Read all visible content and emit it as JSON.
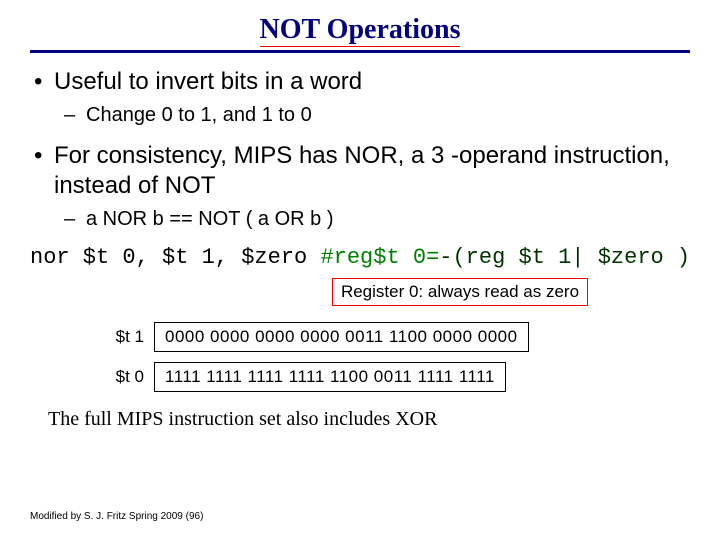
{
  "title": "NOT Operations",
  "bullets": {
    "b1": "Useful to invert bits in a word",
    "b1a": "Change 0 to 1, and 1 to 0",
    "b2": "For consistency, MIPS has NOR, a 3 -operand instruction, instead of NOT",
    "b2a": "a NOR b == NOT ( a OR b )"
  },
  "code": {
    "instr": "nor $t 0, $t 1, $zero ",
    "comment_prefix": "#reg$t 0=",
    "comment_rest": "-(reg $t 1| $zero )"
  },
  "note": "Register 0: always read as zero",
  "registers": {
    "r1_label": "$t 1",
    "r1_val": "0000 0000 0000 0000 0011 1100 0000 0000",
    "r0_label": "$t 0",
    "r0_val": "1111 1111 1111 1111 1100 0011 1111 1111"
  },
  "closing": "The full MIPS instruction set also includes XOR",
  "footer": "Modified by S. J. Fritz  Spring 2009 (96)",
  "colors": {
    "title": "#000080",
    "underline": "#ff0000",
    "rule": "#000080",
    "comment": "#008000",
    "comment_dark": "#003300",
    "note_border": "#ff0000",
    "background": "#ffffff"
  }
}
